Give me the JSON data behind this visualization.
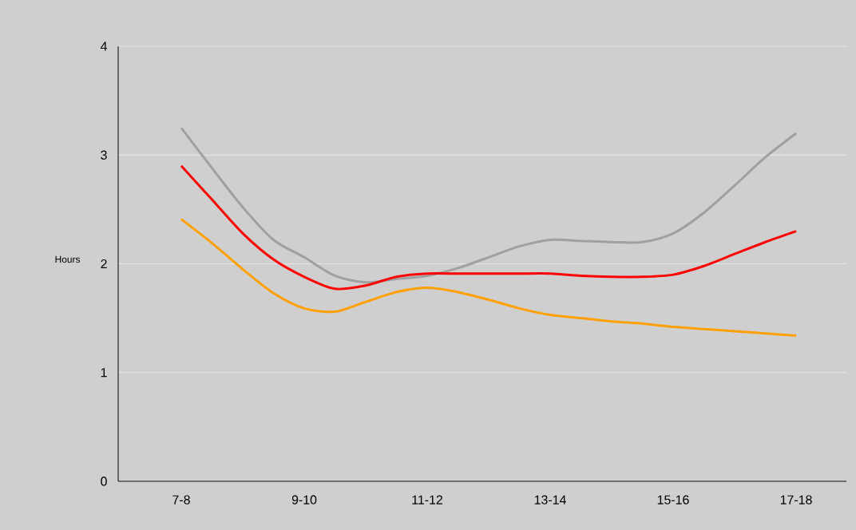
{
  "chart_data": {
    "type": "line",
    "ylabel": "Hours",
    "categories": [
      "7-8",
      null,
      null,
      null,
      "9-10",
      null,
      null,
      null,
      "11-12",
      null,
      null,
      null,
      "13-14",
      null,
      null,
      null,
      "15-16",
      null,
      null,
      null,
      "17-18"
    ],
    "series": [
      {
        "color": "#a0a0a0",
        "values": [
          3.25,
          2.88,
          2.52,
          2.22,
          2.06,
          1.89,
          1.83,
          1.86,
          1.89,
          1.96,
          2.06,
          2.16,
          2.22,
          2.21,
          2.2,
          2.2,
          2.28,
          2.47,
          2.72,
          2.98,
          3.2
        ]
      },
      {
        "color": "#ff0000",
        "values": [
          2.9,
          2.59,
          2.28,
          2.04,
          1.88,
          1.77,
          1.8,
          1.88,
          1.91,
          1.91,
          1.91,
          1.91,
          1.91,
          1.89,
          1.88,
          1.88,
          1.9,
          1.98,
          2.09,
          2.2,
          2.3
        ]
      },
      {
        "color": "#ffa000",
        "values": [
          2.41,
          2.19,
          1.95,
          1.73,
          1.59,
          1.56,
          1.65,
          1.74,
          1.78,
          1.74,
          1.67,
          1.59,
          1.53,
          1.5,
          1.47,
          1.45,
          1.42,
          1.4,
          1.38,
          1.36,
          1.34
        ]
      }
    ],
    "ylim": [
      0,
      4
    ],
    "yticks": [
      0,
      1,
      2,
      3,
      4
    ],
    "grid": "y",
    "marker": "none",
    "line_style": "solid"
  }
}
